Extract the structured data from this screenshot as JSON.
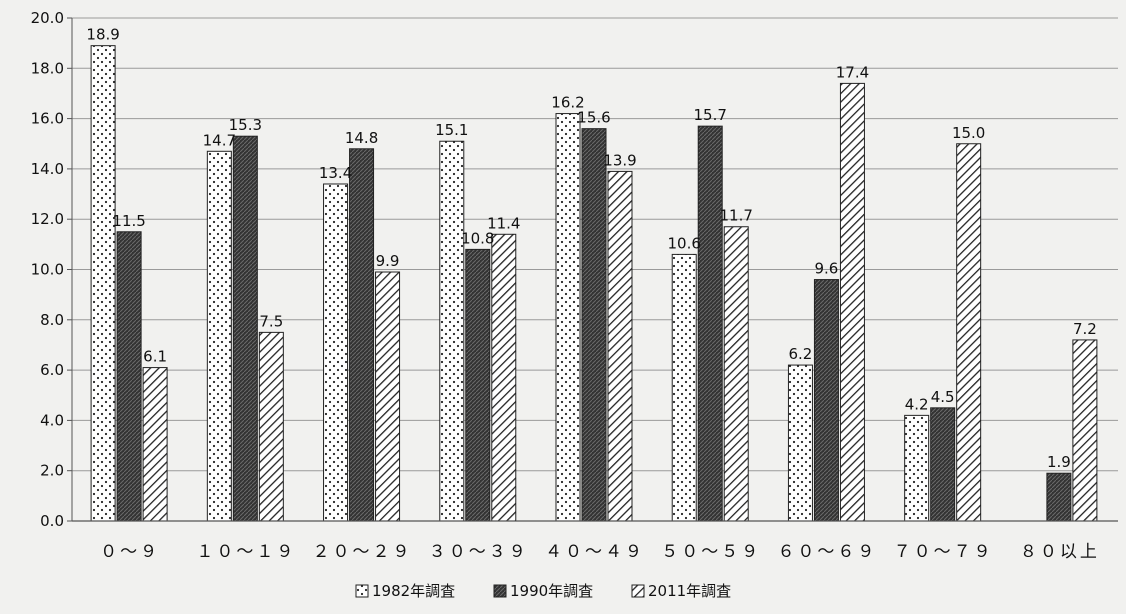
{
  "chart_data": {
    "type": "bar",
    "categories": [
      "０～９",
      "１０～１９",
      "２０～２９",
      "３０～３９",
      "４０～４９",
      "５０～５９",
      "６０～６９",
      "７０～７９",
      "８０以上"
    ],
    "series": [
      {
        "name": "1982年調査",
        "values": [
          18.9,
          14.7,
          13.4,
          15.1,
          16.2,
          10.6,
          6.2,
          4.2,
          null
        ]
      },
      {
        "name": "1990年調査",
        "values": [
          11.5,
          15.3,
          14.8,
          10.8,
          15.6,
          15.7,
          9.6,
          4.5,
          1.9
        ]
      },
      {
        "name": "2011年調査",
        "values": [
          6.1,
          7.5,
          9.9,
          11.4,
          13.9,
          11.7,
          17.4,
          15.0,
          7.2
        ]
      }
    ],
    "data_labels": [
      [
        "18.9",
        "14.7",
        "13.4",
        "15.1",
        "16.2",
        "10.6",
        "6.2",
        "4.2",
        ""
      ],
      [
        "11.5",
        "15.3",
        "14.8",
        "10.8",
        "15.6",
        "15.7",
        "9.6",
        "4.5",
        "1.9"
      ],
      [
        "6.1",
        "7.5",
        "9.9",
        "11.4",
        "13.9",
        "11.7",
        "17.4",
        "15.0",
        "7.2"
      ]
    ],
    "y_ticks": [
      "0.0",
      "2.0",
      "4.0",
      "6.0",
      "8.0",
      "10.0",
      "12.0",
      "14.0",
      "16.0",
      "18.0",
      "20.0"
    ],
    "ylim": [
      0,
      20
    ],
    "grid": true,
    "legend_position": "bottom-center",
    "series_patterns": [
      "dots",
      "crosshatch-dark",
      "diagonal-stripes"
    ]
  }
}
